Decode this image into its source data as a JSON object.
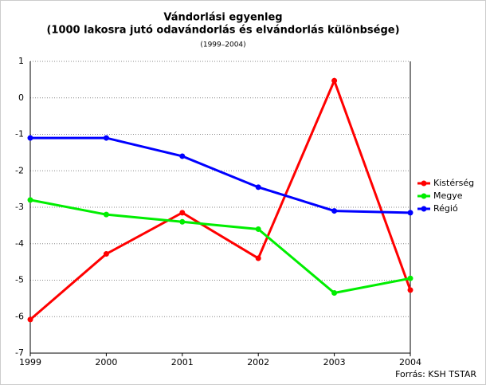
{
  "chart_data": {
    "type": "line",
    "title": "Vándorlási egyenleg",
    "subtitle": "(1000 lakosra jutó odavándorlás és elvándorlás különbsége)",
    "period": "(1999–2004)",
    "source": "Forrás: KSH TSTAR",
    "x": [
      1999,
      2000,
      2001,
      2002,
      2003,
      2004
    ],
    "xlim": [
      1999,
      2004
    ],
    "xticks": [
      1999,
      2000,
      2001,
      2002,
      2003,
      2004
    ],
    "ylim": [
      -7,
      1
    ],
    "yticks": [
      -7,
      -6,
      -5,
      -4,
      -3,
      -2,
      -1,
      0,
      1
    ],
    "grid": true,
    "legend": "right",
    "series": [
      {
        "name": "Kistérség",
        "color": "#ff0000",
        "values": [
          -6.08,
          -4.28,
          -3.15,
          -4.4,
          0.47,
          -5.27
        ]
      },
      {
        "name": "Megye",
        "color": "#00ee00",
        "values": [
          -2.8,
          -3.2,
          -3.4,
          -3.6,
          -5.35,
          -4.95
        ]
      },
      {
        "name": "Régió",
        "color": "#0000ff",
        "values": [
          -1.1,
          -1.1,
          -1.6,
          -2.45,
          -3.1,
          -3.15
        ]
      }
    ]
  }
}
